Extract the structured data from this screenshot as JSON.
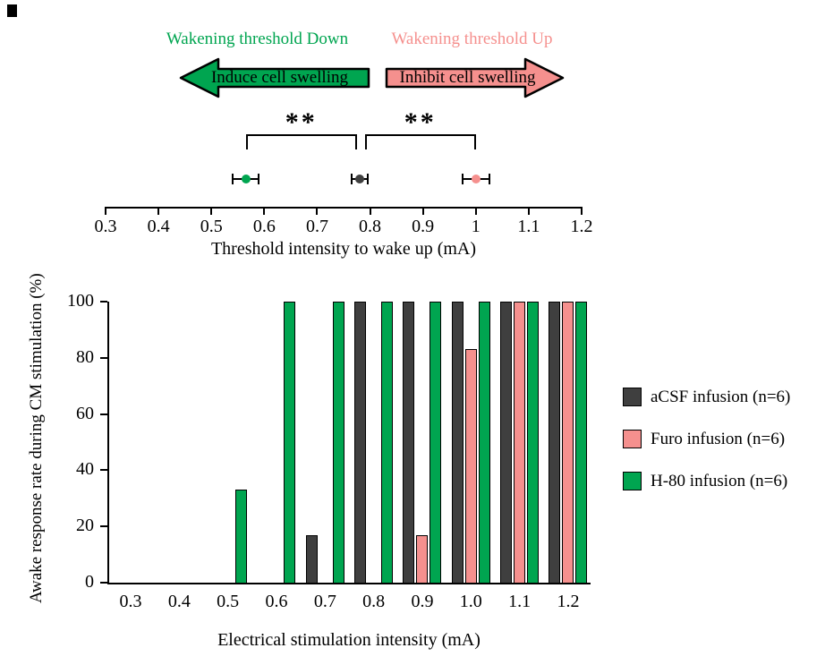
{
  "top_panel": {
    "left_label": "Wakening threshold Down",
    "right_label": "Wakening threshold Up",
    "left_arrow_text": "Induce cell swelling",
    "right_arrow_text": "Inhibit cell swelling"
  },
  "colors": {
    "green": "#00A550",
    "pink": "#F5908E",
    "dark": "#3F3F3F"
  },
  "chart_data": [
    {
      "type": "scatter",
      "title": "Threshold intensity to wake up",
      "xlabel": "Threshold intensity to wake up (mA)",
      "xlim": [
        0.3,
        1.2
      ],
      "xticks": [
        "0.3",
        "0.4",
        "0.5",
        "0.6",
        "0.7",
        "0.8",
        "0.9",
        "1",
        "1.1",
        "1.2"
      ],
      "points": [
        {
          "name": "H-80",
          "x": 0.565,
          "err": 0.025,
          "color": "#00A550"
        },
        {
          "name": "aCSF",
          "x": 0.78,
          "err": 0.015,
          "color": "#3F3F3F"
        },
        {
          "name": "Furo",
          "x": 1.0,
          "err": 0.025,
          "color": "#F5908E"
        }
      ],
      "significance": [
        {
          "from": 0.565,
          "to": 0.775,
          "label": "**"
        },
        {
          "from": 0.79,
          "to": 1.0,
          "label": "**"
        }
      ]
    },
    {
      "type": "bar",
      "categories": [
        "0.3",
        "0.4",
        "0.5",
        "0.6",
        "0.7",
        "0.8",
        "0.9",
        "1.0",
        "1.1",
        "1.2"
      ],
      "series": [
        {
          "name": "aCSF infusion (n=6)",
          "color": "#3F3F3F",
          "values": [
            0,
            0,
            0,
            0,
            17,
            100,
            100,
            100,
            100,
            100
          ]
        },
        {
          "name": "Furo infusion (n=6)",
          "color": "#F5908E",
          "values": [
            0,
            0,
            0,
            0,
            0,
            0,
            17,
            83,
            100,
            100
          ]
        },
        {
          "name": "H-80 infusion (n=6)",
          "color": "#00A550",
          "values": [
            0,
            0,
            33,
            100,
            100,
            100,
            100,
            100,
            100,
            100
          ]
        }
      ],
      "xlabel": "Electrical stimulation intensity (mA)",
      "ylabel": "Awake response rate during CM stimulation (%)",
      "ylim": [
        0,
        100
      ],
      "yticks": [
        0,
        20,
        40,
        60,
        80,
        100
      ],
      "grid": false,
      "legend_position": "right"
    }
  ]
}
